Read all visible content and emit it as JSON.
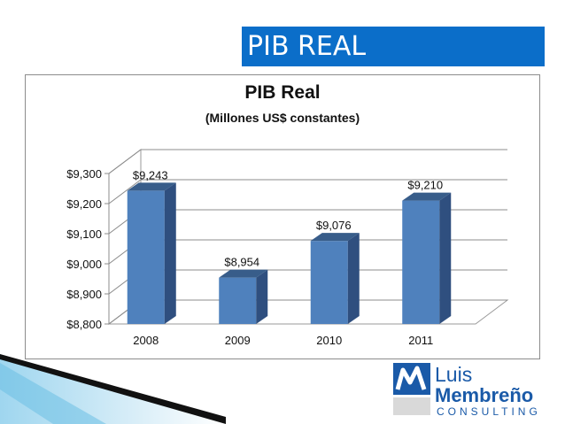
{
  "slide": {
    "title": "PIB REAL"
  },
  "logo": {
    "line1": "Luis",
    "line2": "Membreño",
    "line3": "CONSULTING"
  },
  "colors": {
    "title_bar": "#0b6ec9",
    "bar_front": "#4f81bd",
    "bar_side": "#2f4f7f",
    "bar_top": "#385d8a",
    "logo_blue": "#1a5aa8"
  },
  "chart_data": {
    "type": "bar",
    "title": "PIB Real",
    "subtitle": "(Millones US$ constantes)",
    "categories": [
      "2008",
      "2009",
      "2010",
      "2011"
    ],
    "values": [
      9243,
      8954,
      9076,
      9210
    ],
    "data_labels": [
      "$9,243",
      "$8,954",
      "$9,076",
      "$9,210"
    ],
    "ylim": [
      8800,
      9300
    ],
    "y_ticks": [
      8800,
      8900,
      9000,
      9100,
      9200,
      9300
    ],
    "y_tick_labels": [
      "$8,800",
      "$8,900",
      "$9,000",
      "$9,100",
      "$9,200",
      "$9,300"
    ],
    "grid": true,
    "style": "3d-column"
  }
}
